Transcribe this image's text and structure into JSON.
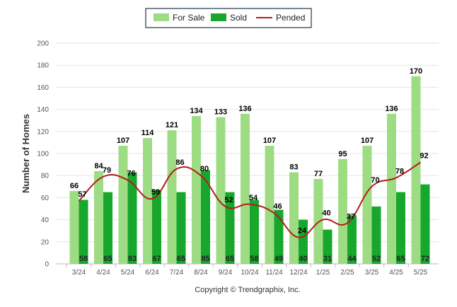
{
  "chart_data": {
    "type": "bar",
    "categories": [
      "3/24",
      "4/24",
      "5/24",
      "6/24",
      "7/24",
      "8/24",
      "9/24",
      "10/24",
      "11/24",
      "12/24",
      "1/25",
      "2/25",
      "3/25",
      "4/25",
      "5/25"
    ],
    "series": [
      {
        "name": "For Sale",
        "type": "bar",
        "color": "#9ddc82",
        "values": [
          66,
          84,
          107,
          114,
          121,
          134,
          133,
          136,
          107,
          83,
          77,
          95,
          107,
          136,
          170
        ]
      },
      {
        "name": "Sold",
        "type": "bar",
        "color": "#18a72d",
        "values": [
          58,
          65,
          83,
          67,
          65,
          85,
          65,
          58,
          49,
          40,
          31,
          44,
          52,
          65,
          72
        ]
      },
      {
        "name": "Pended",
        "type": "line",
        "color": "#b41c1c",
        "values": [
          57,
          79,
          76,
          59,
          86,
          80,
          52,
          54,
          46,
          24,
          40,
          37,
          70,
          78,
          92
        ]
      }
    ],
    "ylabel": "Number of Homes",
    "ylim": [
      0,
      200
    ],
    "yticks": [
      0,
      20,
      40,
      60,
      80,
      100,
      120,
      140,
      160,
      180,
      200
    ],
    "grid": true,
    "legend_position": "top-center"
  },
  "footer": {
    "copyright": "Copyright © Trendgraphix, Inc."
  }
}
